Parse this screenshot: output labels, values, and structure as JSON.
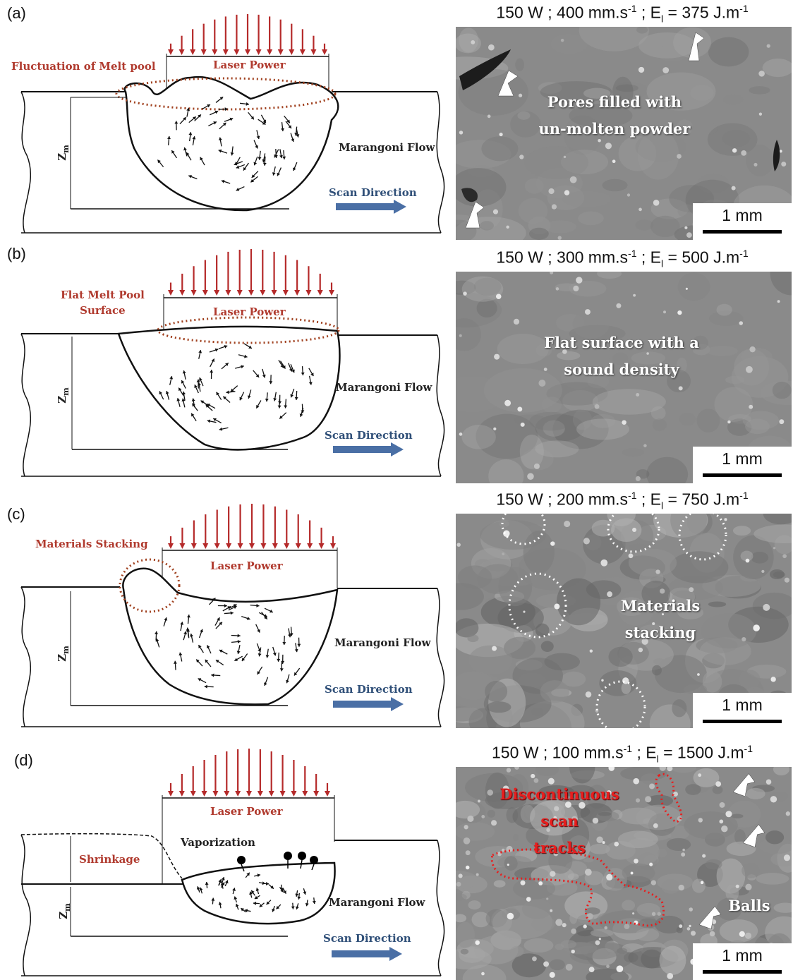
{
  "panels": [
    {
      "label": "(a)",
      "condition": {
        "power": "150 W",
        "speed": "400 mm.s",
        "speed_exp": "-1",
        "energy_var": "E",
        "energy_sub": "l",
        "energy_val": "= 375 J.m",
        "energy_exp": "-1"
      },
      "schematic": {
        "note": "Fluctuation of Melt pool",
        "laser": "Laser Power",
        "flow": "Marangoni Flow",
        "scan": "Scan Direction",
        "depth": "Z",
        "depth_sub": "m"
      },
      "sem_text": [
        "Pores filled with",
        "un-molten powder"
      ],
      "scale": "1 mm"
    },
    {
      "label": "(b)",
      "condition": {
        "power": "150 W",
        "speed": "300 mm.s",
        "speed_exp": "-1",
        "energy_var": "E",
        "energy_sub": "l",
        "energy_val": "= 500 J.m",
        "energy_exp": "-1"
      },
      "schematic": {
        "note": "Flat Melt Pool",
        "note2": "Surface",
        "laser": "Laser Power",
        "flow": "Marangoni Flow",
        "scan": "Scan Direction",
        "depth": "Z",
        "depth_sub": "m"
      },
      "sem_text": [
        "Flat surface with a",
        "sound density"
      ],
      "scale": "1 mm"
    },
    {
      "label": "(c)",
      "condition": {
        "power": "150 W",
        "speed": "200 mm.s",
        "speed_exp": "-1",
        "energy_var": "E",
        "energy_sub": "l",
        "energy_val": "= 750 J.m",
        "energy_exp": "-1"
      },
      "schematic": {
        "note": "Materials Stacking",
        "laser": "Laser Power",
        "flow": "Marangoni Flow",
        "scan": "Scan Direction",
        "depth": "Z",
        "depth_sub": "m"
      },
      "sem_text": [
        "Materials stacking"
      ],
      "scale": "1 mm"
    },
    {
      "label": "(d)",
      "condition": {
        "power": "150 W",
        "speed": "100 mm.s",
        "speed_exp": "-1",
        "energy_var": "E",
        "energy_sub": "l",
        "energy_val": "= 1500 J.m",
        "energy_exp": "-1"
      },
      "schematic": {
        "note": "Shrinkage",
        "vapor": "Vaporization",
        "laser": "Laser Power",
        "flow": "Marangoni Flow",
        "scan": "Scan Direction",
        "depth": "Z",
        "depth_sub": "m"
      },
      "sem_text": [
        "Discontinuous scan",
        "tracks"
      ],
      "sem_text2": "Balls",
      "scale": "1 mm"
    }
  ],
  "colors": {
    "laser_arrow": "#b52a2a",
    "dotted_ellipse": "#a0401e",
    "scan_arrow": "#4a6fa5",
    "sem_bg": "#8a8a8a"
  }
}
